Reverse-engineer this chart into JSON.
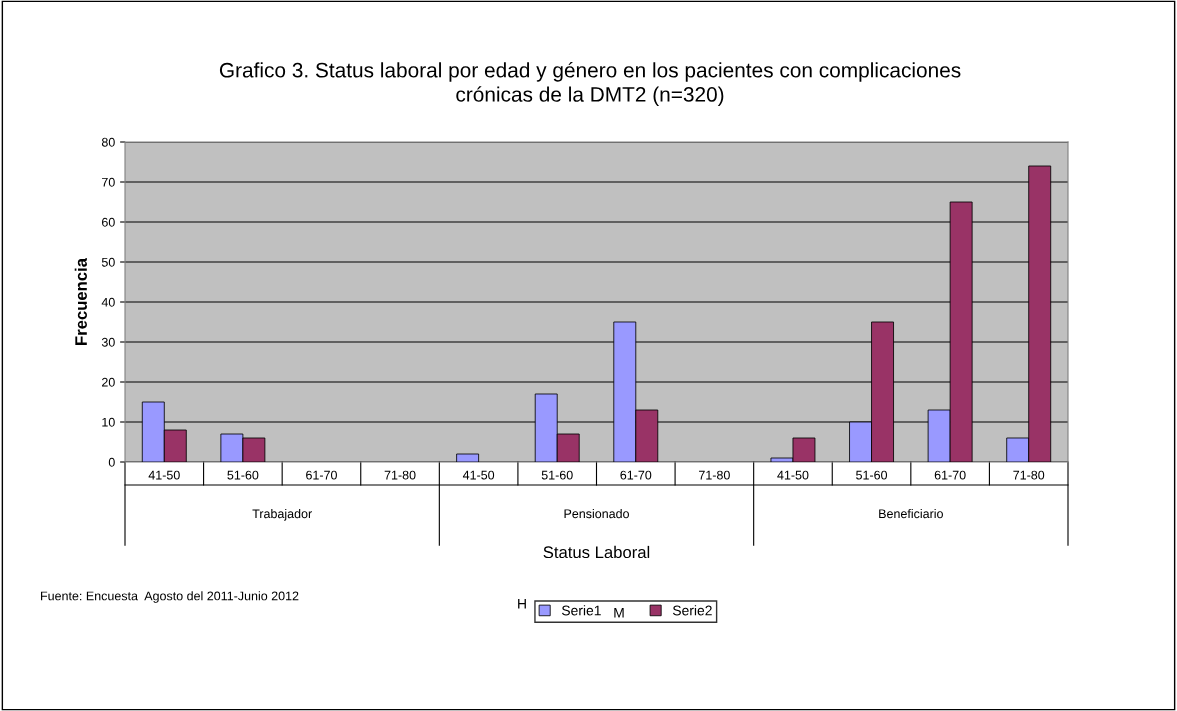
{
  "chart_data": {
    "type": "bar",
    "title": "Grafico 3. Status laboral por edad y género en los pacientes con complicaciones crónicas de la DMT2 (n=320)",
    "xlabel": "Status Laboral",
    "ylabel": "Frecuencia",
    "categories": [
      "41-50",
      "51-60",
      "61-70",
      "71-80",
      "41-50",
      "51-60",
      "61-70",
      "71-80",
      "41-50",
      "51-60",
      "61-70",
      "71-80"
    ],
    "series": [
      {
        "name": "Serie1",
        "color": "#9999ff",
        "values": [
          15,
          7,
          0,
          0,
          2,
          17,
          35,
          0,
          1,
          10,
          13,
          6
        ]
      },
      {
        "name": "Serie2",
        "color": "#993366",
        "values": [
          8,
          6,
          0,
          0,
          0,
          7,
          13,
          0,
          6,
          35,
          65,
          74
        ]
      }
    ],
    "annotations": [
      "Trabajador",
      "Pensionado",
      "Beneficiario",
      "Fuente: Encuesta  Agosto del 2011-Junio 2012",
      "H",
      "M"
    ],
    "ylim": [
      0,
      80
    ],
    "yticks": [
      0,
      10,
      20,
      30,
      40,
      50,
      60,
      70,
      80
    ],
    "grid": "y",
    "legend": "bottom"
  }
}
